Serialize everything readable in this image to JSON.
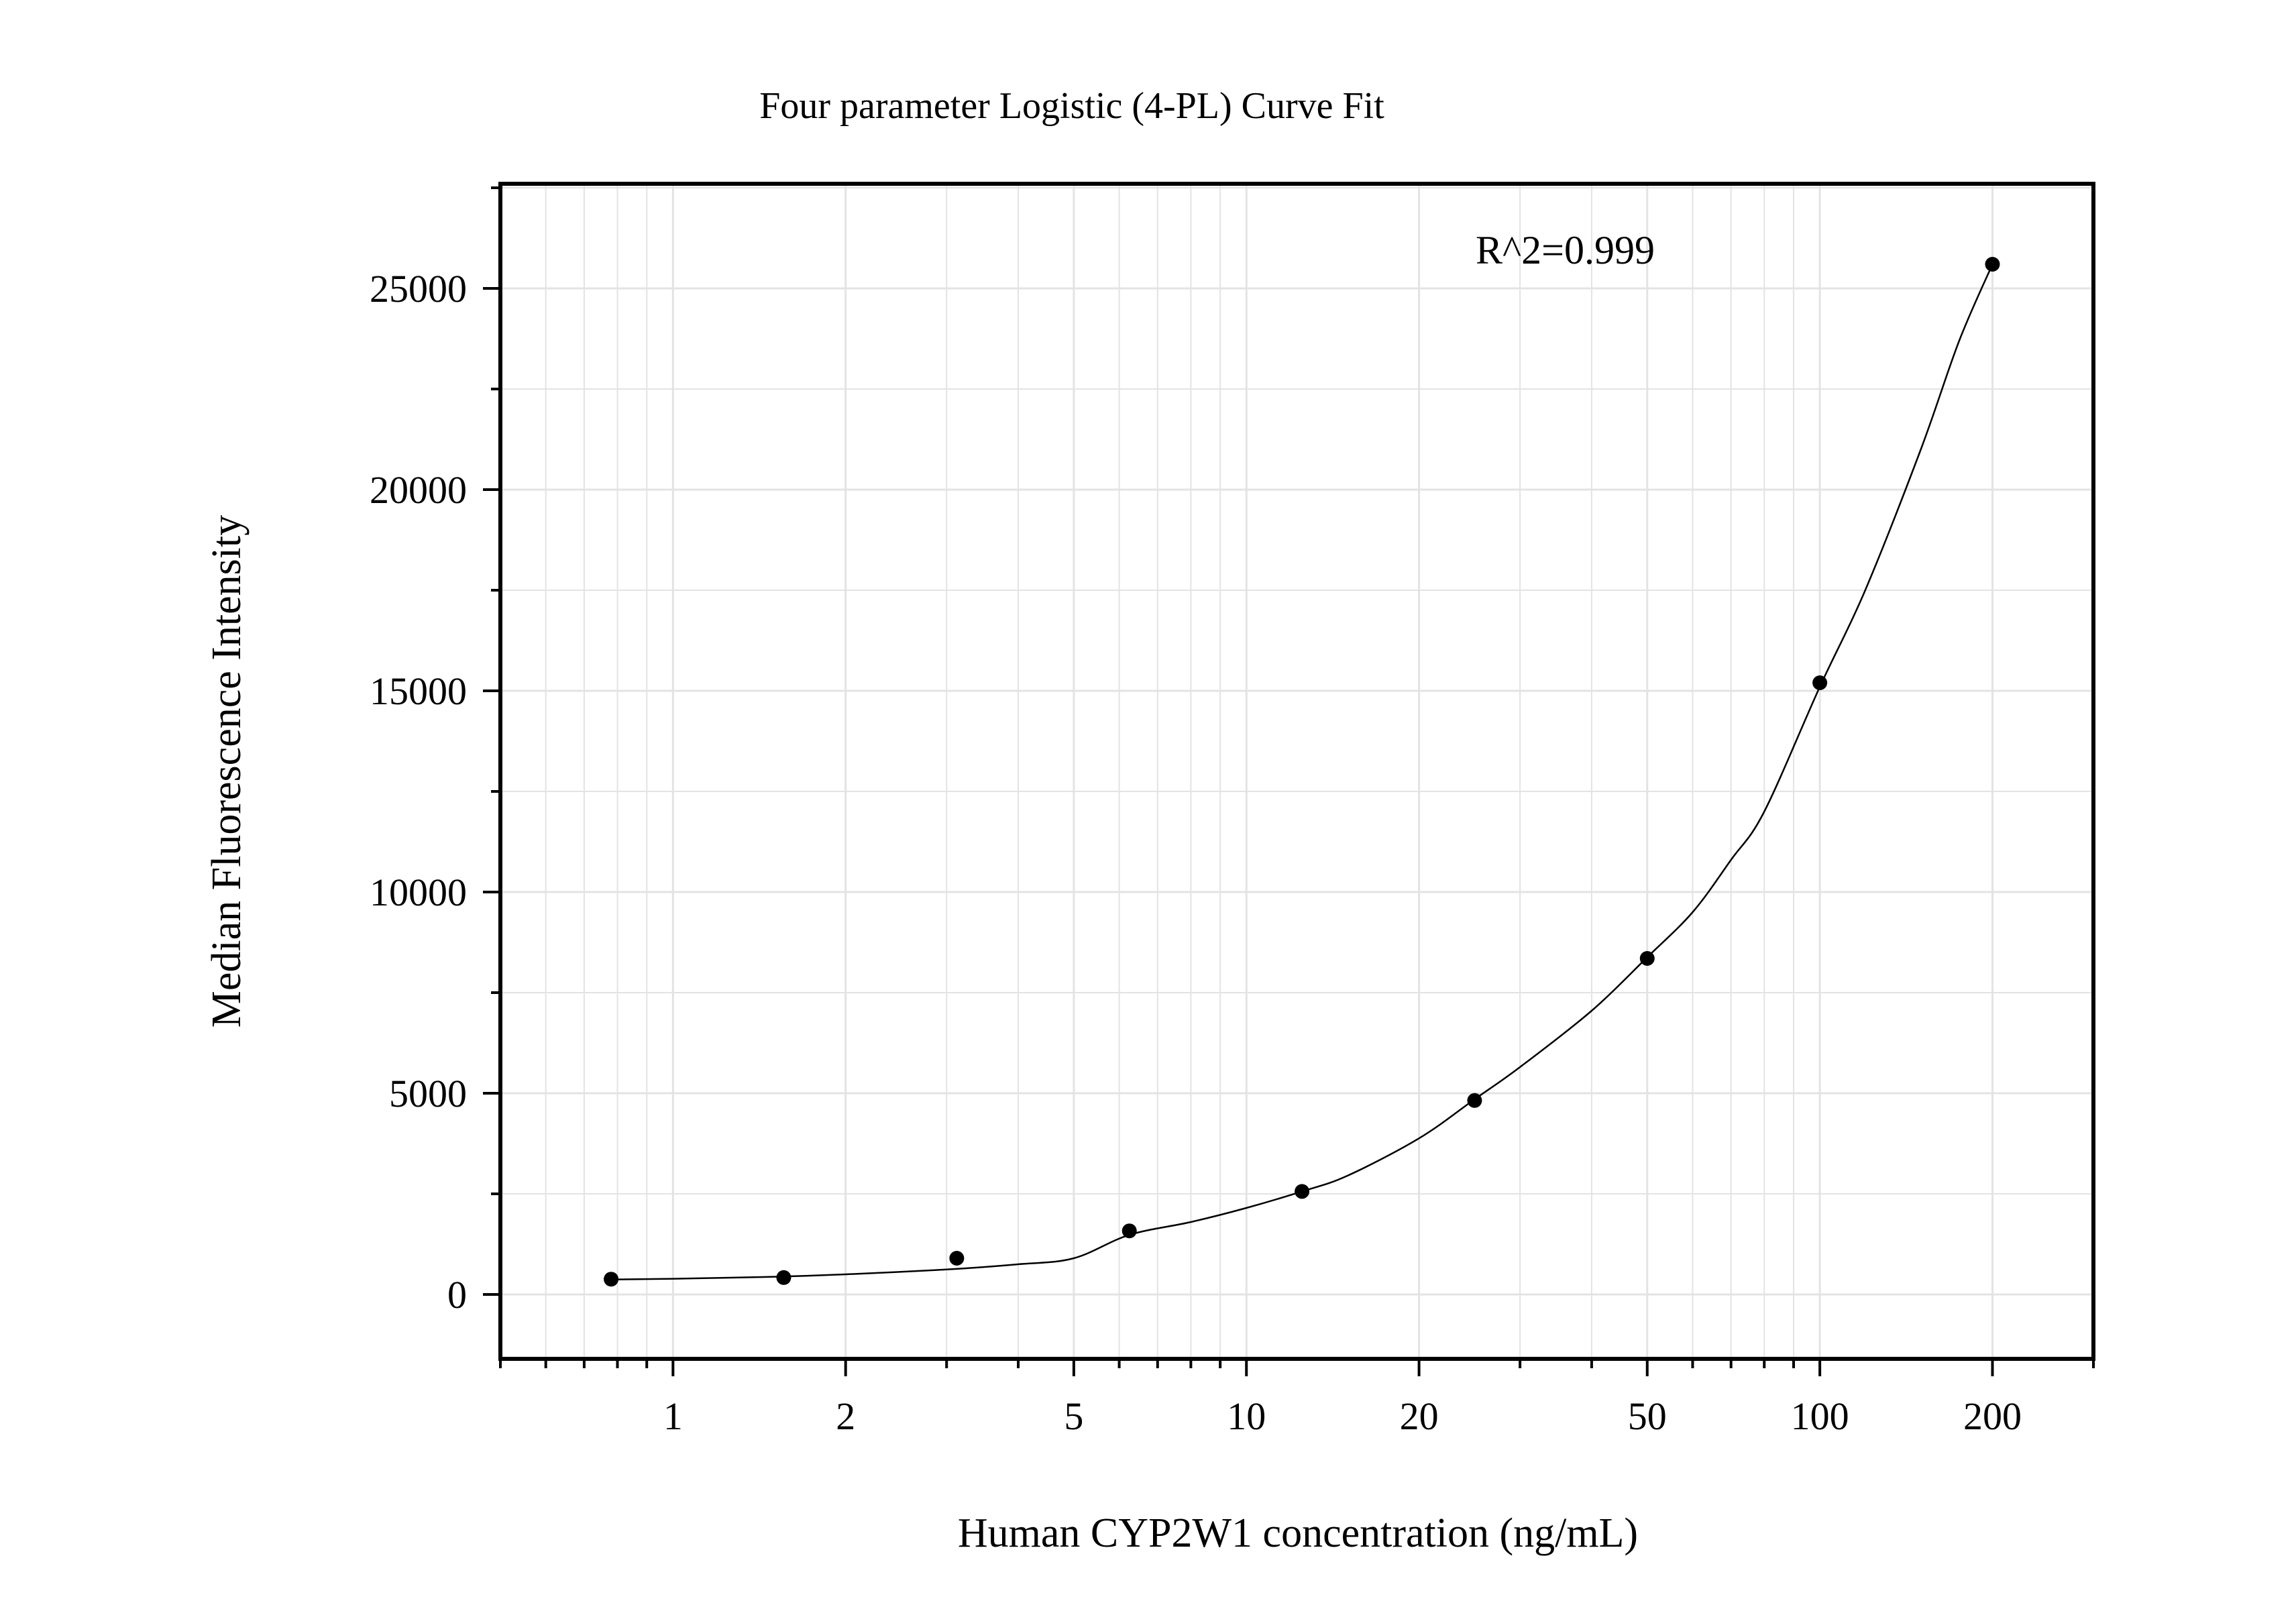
{
  "chart_data": {
    "type": "scatter",
    "title": "Four parameter Logistic (4-PL) Curve Fit",
    "xlabel": "Human CYP2W1 concentration (ng/mL)",
    "ylabel": "Median Fluorescence Intensity",
    "x_scale": "log",
    "xlim": [
      0.5,
      300
    ],
    "ylim": [
      -1600,
      27600
    ],
    "x_ticks": [
      1,
      2,
      5,
      10,
      20,
      50,
      100,
      200
    ],
    "x_tick_labels": [
      "1",
      "2",
      "5",
      "10",
      "20",
      "50",
      "100",
      "200"
    ],
    "y_ticks": [
      0,
      5000,
      10000,
      15000,
      20000,
      25000
    ],
    "y_tick_labels": [
      "0",
      "5000",
      "10000",
      "15000",
      "20000",
      "25000"
    ],
    "grid": true,
    "annotation": "R^2=0.999",
    "series": [
      {
        "x": [
          0.78,
          1.56,
          3.125,
          6.25,
          12.5,
          25,
          50,
          100,
          200
        ],
        "y": [
          380,
          420,
          900,
          1580,
          2560,
          4820,
          8350,
          15200,
          25600
        ]
      }
    ],
    "fit_curve": {
      "model": "4PL",
      "x": [
        0.78,
        1,
        1.5,
        2,
        3,
        4,
        5,
        6.25,
        8,
        10,
        12.5,
        15,
        20,
        25,
        30,
        40,
        50,
        60,
        70,
        80,
        100,
        120,
        150,
        175,
        200
      ],
      "y": [
        370,
        390,
        440,
        500,
        620,
        750,
        900,
        1480,
        1800,
        2150,
        2560,
        2950,
        3880,
        4850,
        5650,
        7050,
        8380,
        9500,
        10800,
        12000,
        15100,
        17500,
        21000,
        23700,
        25600
      ]
    },
    "colors": {
      "points": "#000000",
      "curve": "#000000",
      "grid": "#e3e3e3",
      "frame": "#000000"
    }
  }
}
